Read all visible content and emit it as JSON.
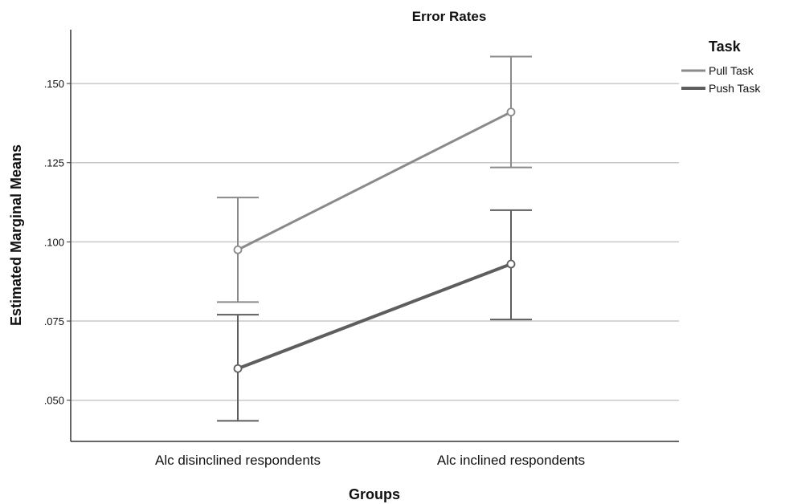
{
  "chart_data": {
    "type": "line",
    "title": "Error Rates",
    "xlabel": "Groups",
    "ylabel": "Estimated Marginal Means",
    "categories": [
      "Alc disinclined respondents",
      "Alc inclined respondents"
    ],
    "ylim": [
      0.037,
      0.167
    ],
    "yticks": [
      0.05,
      0.075,
      0.1,
      0.125,
      0.15
    ],
    "ytick_labels": [
      ".050",
      ".075",
      ".100",
      ".125",
      ".150"
    ],
    "grid": true,
    "legend": {
      "title": "Task",
      "placement": "top-right"
    },
    "series": [
      {
        "name": "Pull Task",
        "color": "#8a8a8a",
        "values": [
          0.0975,
          0.141
        ],
        "error_low": [
          0.081,
          0.1235
        ],
        "error_high": [
          0.114,
          0.1585
        ]
      },
      {
        "name": "Push Task",
        "color": "#5e5e5e",
        "values": [
          0.06,
          0.093
        ],
        "error_low": [
          0.0435,
          0.0755
        ],
        "error_high": [
          0.077,
          0.11
        ]
      }
    ]
  }
}
